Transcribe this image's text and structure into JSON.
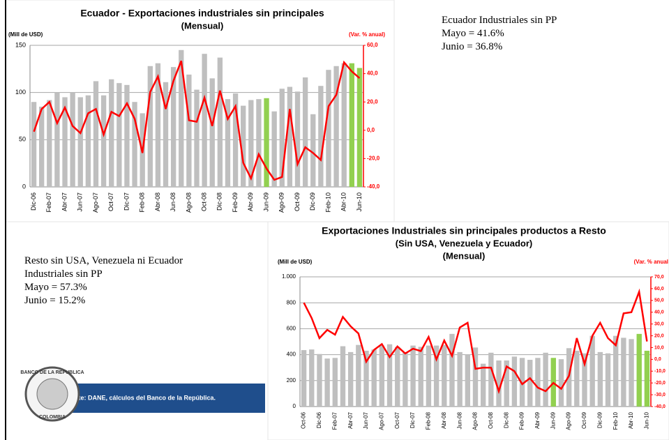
{
  "chart_data": [
    {
      "type": "bar-line",
      "title": "Ecuador - Exportaciones industriales sin principales",
      "subtitle": [
        "(Mensual)"
      ],
      "ylabel": "(Mill de USD)",
      "y2label": "(Var. % anual)",
      "categories": [
        "Dic-06",
        null,
        "Feb-07",
        null,
        "Abr-07",
        null,
        "Jun-07",
        null,
        "Ago-07",
        null,
        "Oct-07",
        null,
        "Dic-07",
        null,
        "Feb-08",
        null,
        "Abr-08",
        null,
        "Jun-08",
        null,
        "Ago-08",
        null,
        "Oct-08",
        null,
        "Dic-08",
        null,
        "Feb-09",
        null,
        "Abr-09",
        null,
        "Jun-09",
        null,
        "Ago-09",
        null,
        "Oct-09",
        null,
        "Dic-09",
        null,
        "Feb-10",
        null,
        "Abr-10",
        null,
        "Jun-10"
      ],
      "series": [
        {
          "color": "#bfbfbf",
          "colors": [
            "#bfbfbf",
            "#bfbfbf",
            "#bfbfbf",
            "#bfbfbf",
            "#bfbfbf",
            "#bfbfbf",
            "#bfbfbf",
            "#bfbfbf",
            "#bfbfbf",
            "#bfbfbf",
            "#bfbfbf",
            "#bfbfbf",
            "#bfbfbf",
            "#bfbfbf",
            "#bfbfbf",
            "#bfbfbf",
            "#bfbfbf",
            "#bfbfbf",
            "#bfbfbf",
            "#bfbfbf",
            "#bfbfbf",
            "#bfbfbf",
            "#bfbfbf",
            "#bfbfbf",
            "#bfbfbf",
            "#bfbfbf",
            "#bfbfbf",
            "#bfbfbf",
            "#bfbfbf",
            "#bfbfbf",
            "#92d050",
            "#bfbfbf",
            "#bfbfbf",
            "#bfbfbf",
            "#bfbfbf",
            "#bfbfbf",
            "#bfbfbf",
            "#bfbfbf",
            "#bfbfbf",
            "#bfbfbf",
            "#bfbfbf",
            "#92d050",
            "#92d050"
          ],
          "values": [
            90,
            85,
            92,
            100,
            95,
            100,
            95,
            97,
            112,
            97,
            114,
            110,
            108,
            90,
            78,
            128,
            131,
            111,
            127,
            145,
            119,
            103,
            141,
            115,
            137,
            93,
            99,
            86,
            92,
            93,
            94,
            80,
            104,
            106,
            101,
            116,
            77,
            107,
            124,
            128,
            131,
            131,
            126
          ]
        },
        {
          "color": "#ff0000",
          "axis": "y2",
          "values": [
            -1,
            15,
            20,
            5,
            16,
            3,
            -2,
            12,
            15,
            -3,
            13,
            10,
            19,
            8,
            -16,
            27,
            38,
            15,
            35,
            49,
            7,
            6,
            23,
            3,
            28,
            8,
            17,
            -23,
            -34,
            -17,
            -27,
            -35,
            -33,
            15,
            -24,
            -12,
            -16,
            -21,
            17,
            25,
            48,
            41.6,
            36.8
          ]
        }
      ],
      "ylim": [
        0,
        150
      ],
      "yticks": [
        0,
        50,
        100,
        150
      ],
      "y2lim": [
        -40,
        60
      ],
      "y2ticks": [
        {
          "value": -40,
          "label": "-40,0"
        },
        {
          "value": -20,
          "label": "-20,0"
        },
        {
          "value": 0,
          "label": "0,0"
        },
        {
          "value": 20,
          "label": "20,0"
        },
        {
          "value": 40,
          "label": "40,0"
        },
        {
          "value": 60,
          "label": "60,0"
        }
      ],
      "grid": true
    },
    {
      "type": "bar-line",
      "title": "Exportaciones Industriales sin principales productos a Resto",
      "subtitle": [
        "(Sin USA, Venezuela y Ecuador)",
        "(Mensual)"
      ],
      "ylabel": "(Mill de USD)",
      "y2label": "(Var. % anual",
      "categories": [
        "Oct-06",
        null,
        "Dic-06",
        null,
        "Feb-07",
        null,
        "Abr-07",
        null,
        "Jun-07",
        null,
        "Ago-07",
        null,
        "Oct-07",
        null,
        "Dic-07",
        null,
        "Feb-08",
        null,
        "Abr-08",
        null,
        "Jun-08",
        null,
        "Ago-08",
        null,
        "Oct-08",
        null,
        "Dic-08",
        null,
        "Feb-09",
        null,
        "Abr-09",
        null,
        "Jun-09",
        null,
        "Ago-09",
        null,
        "Oct-09",
        null,
        "Dic-09",
        null,
        "Feb-10",
        null,
        "Abr-10",
        null,
        "Jun-10"
      ],
      "series": [
        {
          "color": "#bfbfbf",
          "colors": [
            "#bfbfbf",
            "#bfbfbf",
            "#bfbfbf",
            "#bfbfbf",
            "#bfbfbf",
            "#bfbfbf",
            "#bfbfbf",
            "#bfbfbf",
            "#bfbfbf",
            "#bfbfbf",
            "#bfbfbf",
            "#bfbfbf",
            "#bfbfbf",
            "#bfbfbf",
            "#bfbfbf",
            "#bfbfbf",
            "#bfbfbf",
            "#bfbfbf",
            "#bfbfbf",
            "#bfbfbf",
            "#bfbfbf",
            "#bfbfbf",
            "#bfbfbf",
            "#bfbfbf",
            "#bfbfbf",
            "#bfbfbf",
            "#bfbfbf",
            "#bfbfbf",
            "#bfbfbf",
            "#bfbfbf",
            "#bfbfbf",
            "#bfbfbf",
            "#92d050",
            "#bfbfbf",
            "#bfbfbf",
            "#bfbfbf",
            "#bfbfbf",
            "#bfbfbf",
            "#bfbfbf",
            "#bfbfbf",
            "#bfbfbf",
            "#bfbfbf",
            "#bfbfbf",
            "#92d050",
            "#92d050"
          ],
          "values": [
            435,
            440,
            405,
            370,
            375,
            465,
            420,
            475,
            430,
            440,
            470,
            480,
            460,
            420,
            470,
            460,
            470,
            470,
            475,
            560,
            420,
            400,
            455,
            330,
            415,
            355,
            355,
            385,
            375,
            360,
            375,
            415,
            375,
            365,
            450,
            430,
            410,
            545,
            420,
            410,
            545,
            530,
            520,
            560,
            430
          ]
        },
        {
          "color": "#ff0000",
          "axis": "y2",
          "values": [
            48,
            35,
            18,
            25,
            21,
            36,
            28,
            22,
            -2,
            8,
            13,
            2,
            11,
            5,
            9,
            7,
            19,
            0,
            16,
            3,
            27,
            31,
            -8,
            -7,
            -7,
            -27,
            -6,
            -10,
            -21,
            -16,
            -24,
            -27,
            -20,
            -25,
            -14,
            18,
            -4,
            20,
            31,
            18,
            12,
            39,
            40,
            57.3,
            15.2
          ]
        }
      ],
      "ylim": [
        0,
        1000
      ],
      "yticks": [
        0,
        200,
        400,
        600,
        800,
        {
          "value": 1000,
          "label": "1.000"
        }
      ],
      "y2lim": [
        -40,
        70
      ],
      "y2ticks": [
        {
          "value": -40,
          "label": "-40,0"
        },
        {
          "value": -30,
          "label": "-30,0"
        },
        {
          "value": -20,
          "label": "-20,0"
        },
        {
          "value": -10,
          "label": "-10,0"
        },
        {
          "value": 0,
          "label": "0,0"
        },
        {
          "value": 10,
          "label": "10,0"
        },
        {
          "value": 20,
          "label": "20,0"
        },
        {
          "value": 30,
          "label": "30,0"
        },
        {
          "value": 40,
          "label": "40,0"
        },
        {
          "value": 50,
          "label": "50,0"
        },
        {
          "value": 60,
          "label": "60,0"
        },
        {
          "value": 70,
          "label": "70,0"
        }
      ],
      "grid": true
    }
  ],
  "notes": {
    "ecuador": [
      "Ecuador Industriales sin PP",
      "Mayo = 41.6%",
      "Junio =  36.8%"
    ],
    "resto": [
      "Resto sin USA, Venezuela ni Ecuador",
      "Industriales sin PP",
      "Mayo = 57.3%",
      "Junio = 15.2%"
    ]
  },
  "footer": {
    "source": "Fuente: DANE, cálculos del Banco de la República.",
    "logo_top": "BANCO DE LA REPUBLICA",
    "logo_bottom": "COLOMBIA"
  }
}
